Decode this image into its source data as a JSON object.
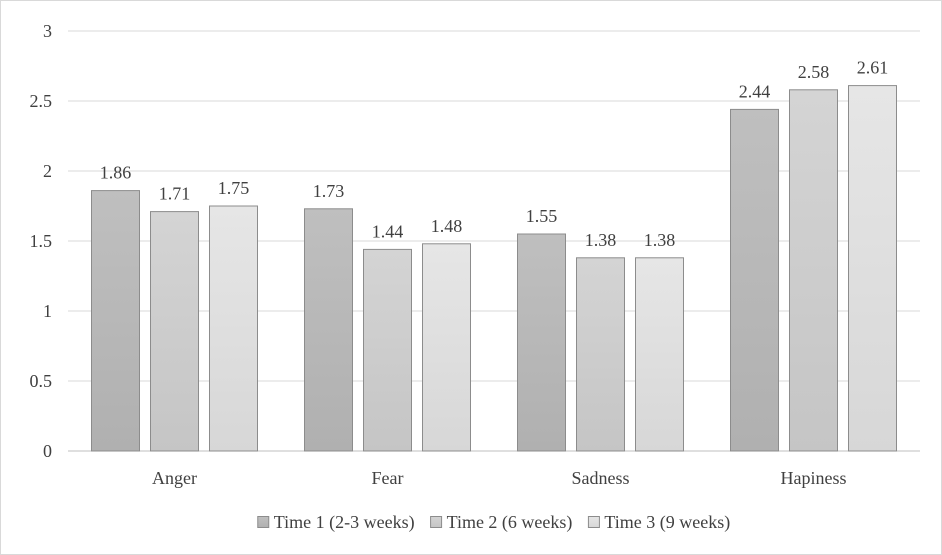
{
  "chart_data": {
    "type": "bar",
    "categories": [
      "Anger",
      "Fear",
      "Sadness",
      "Hapiness"
    ],
    "series": [
      {
        "name": "Time 1 (2-3 weeks)",
        "values": [
          1.86,
          1.73,
          1.55,
          2.44
        ],
        "value_labels": [
          "1.86",
          "1.73",
          "1.55",
          "2.44"
        ],
        "color": "#bfbfbf"
      },
      {
        "name": "Time 2 (6 weeks)",
        "values": [
          1.71,
          1.44,
          1.38,
          2.58
        ],
        "value_labels": [
          "1.71",
          "1.44",
          "1.38",
          "2.58"
        ],
        "color": "#d4d4d4"
      },
      {
        "name": "Time 3 (9 weeks)",
        "values": [
          1.75,
          1.48,
          1.38,
          2.61
        ],
        "value_labels": [
          "1.75",
          "1.48",
          "1.38",
          "2.61"
        ],
        "color": "#e6e6e6"
      }
    ],
    "y_ticks": [
      "0",
      "0.5",
      "1",
      "1.5",
      "2",
      "2.5",
      "3"
    ],
    "ylim": [
      0,
      3
    ],
    "grid": true,
    "legend_position": "bottom"
  }
}
